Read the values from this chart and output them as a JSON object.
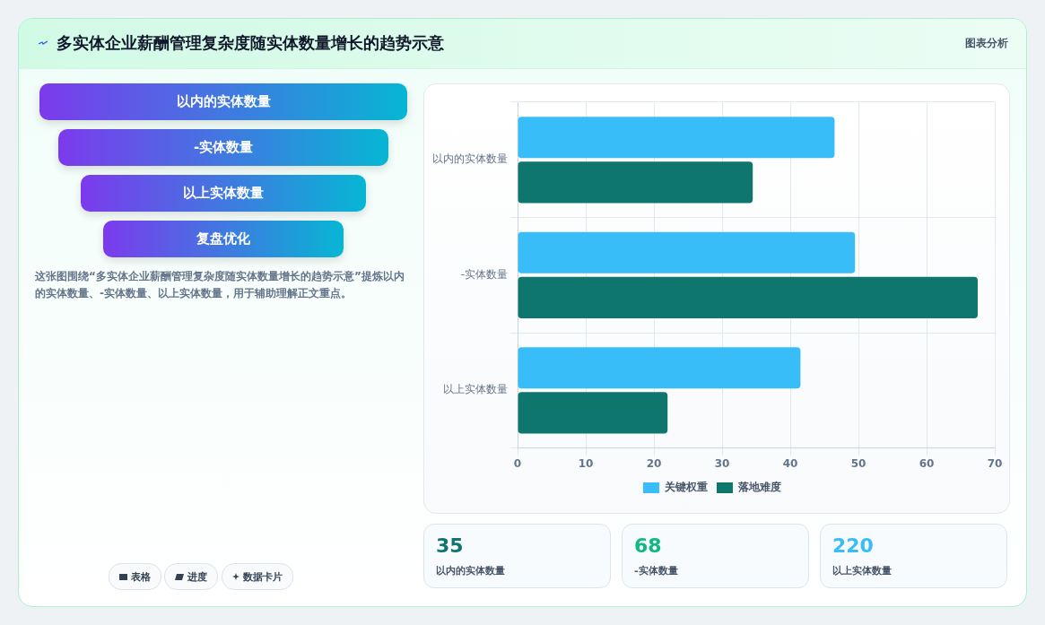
{
  "chart_data": [
    {
      "type": "other",
      "title": "多实体企业薪酬管理复杂度随实体数量增长的趋势示意",
      "annotations": [
        "图表分析",
        "以内的实体数量",
        "-实体数量",
        "以上实体数量",
        "复盘优化",
        "这张图围绕“多实体企业薪酬管理复杂度随实体数量增长的趋势示意”提炼以内的实体数量、-实体数量、以上实体数量，用于辅助理解正文重点。",
        "表格",
        "进度",
        "数据卡片"
      ]
    },
    {
      "type": "bar",
      "orientation": "horizontal",
      "categories": [
        "以内的实体数量",
        "-实体数量",
        "以上实体数量"
      ],
      "series": [
        {
          "name": "关键权重",
          "color": "#38bdf8",
          "values": [
            46.5,
            49.5,
            41.5
          ]
        },
        {
          "name": "落地难度",
          "color": "#0f766e",
          "values": [
            34.5,
            67.5,
            22
          ]
        }
      ],
      "xlim": [
        0,
        70
      ],
      "xticks": [
        0,
        10,
        20,
        30,
        40,
        50,
        60,
        70
      ],
      "grid": true,
      "legend": "bottom"
    },
    {
      "type": "other",
      "categories": [
        "以内的实体数量",
        "-实体数量",
        "以上实体数量"
      ],
      "values": [
        35,
        68,
        220
      ],
      "data_labels": true
    }
  ]
}
